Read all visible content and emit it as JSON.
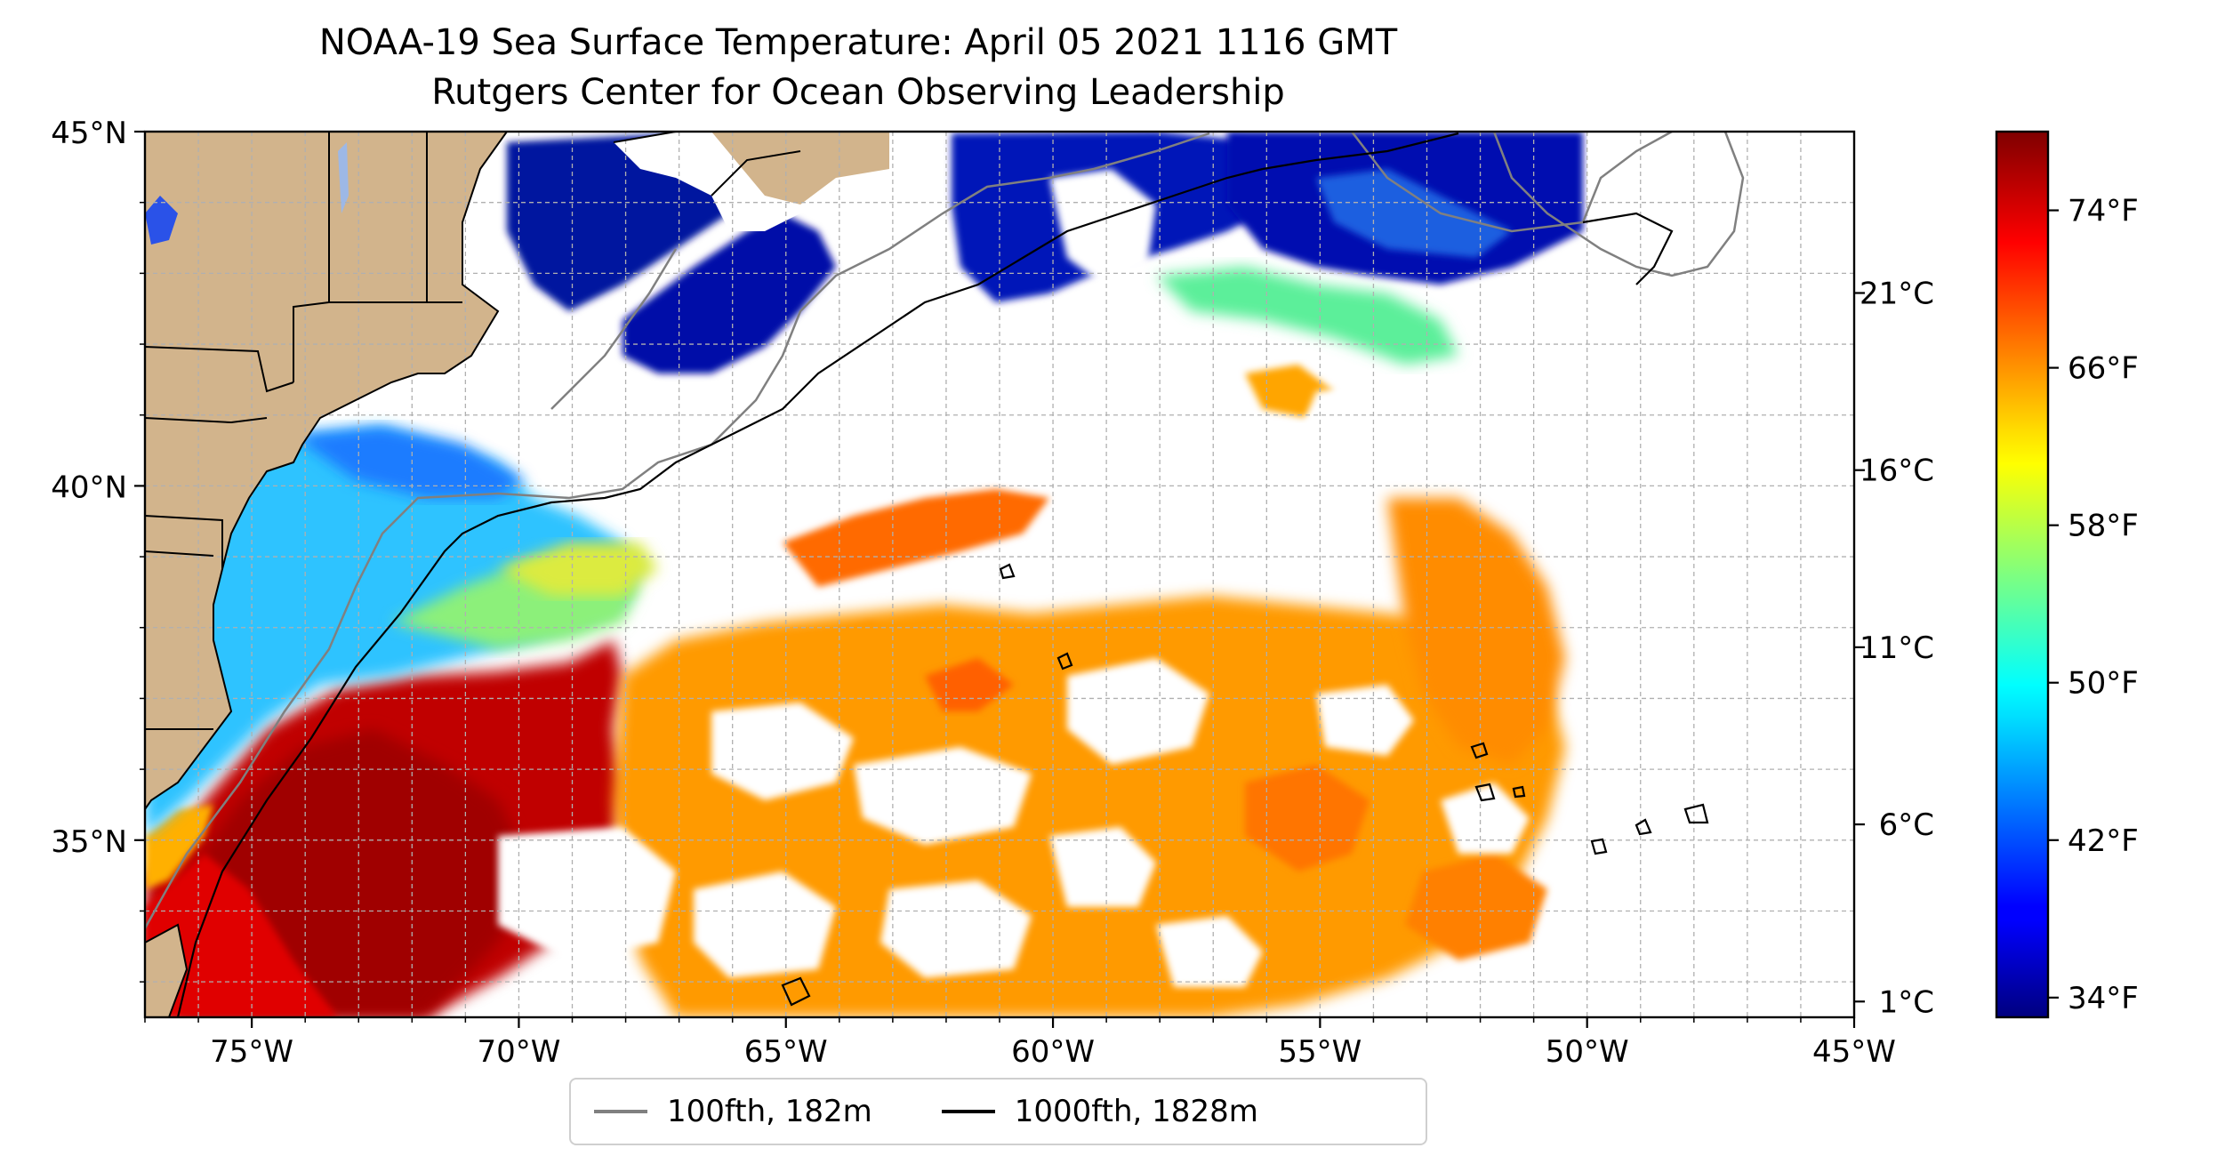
{
  "title": {
    "line1": "NOAA-19 Sea Surface Temperature: April 05 2021 1116 GMT",
    "line2": "Rutgers Center for Ocean Observing Leadership"
  },
  "axes": {
    "lat_ticks": [
      "45°N",
      "40°N",
      "35°N"
    ],
    "lon_ticks": [
      "75°W",
      "70°W",
      "65°W",
      "60°W",
      "55°W",
      "50°W",
      "45°W"
    ],
    "lon_range": [
      -77,
      -45
    ],
    "lat_range": [
      32.5,
      45
    ],
    "grid": true
  },
  "colorbar": {
    "celsius_ticks": [
      "21°C",
      "16°C",
      "11°C",
      "6°C",
      "1°C"
    ],
    "fahrenheit_ticks": [
      "74°F",
      "66°F",
      "58°F",
      "50°F",
      "42°F",
      "34°F"
    ],
    "range_f": [
      33,
      78
    ],
    "colormap": "jet"
  },
  "legend": {
    "items": [
      {
        "label": "100fth, 182m",
        "color": "#808080"
      },
      {
        "label": "1000fth, 1828m",
        "color": "#000000"
      }
    ]
  },
  "colors": {
    "land": "#D2B48C",
    "lake": "#9DB8E6",
    "cloud_nodata": "#FFFFFF",
    "grid": "#B0B0B0"
  }
}
